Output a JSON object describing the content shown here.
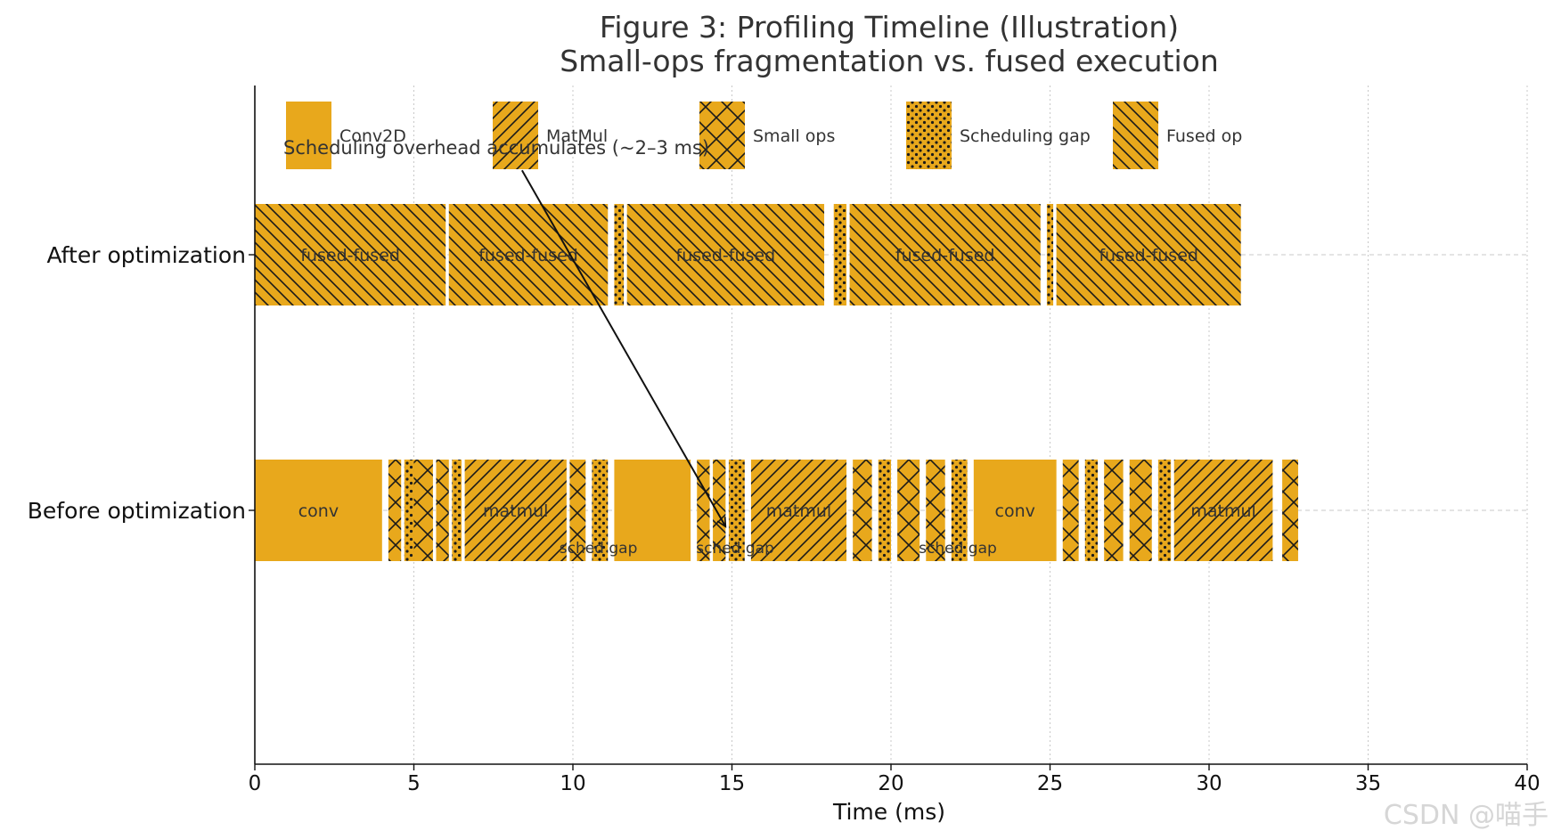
{
  "chart_data": {
    "type": "timeline",
    "title": "Figure 3: Profiling Timeline (Illustration)",
    "subtitle": "Small-ops fragmentation vs. fused execution",
    "xlabel": "Time (ms)",
    "ylabel": "",
    "xlim": [
      0,
      40
    ],
    "xticks": [
      "0",
      "5",
      "10",
      "15",
      "20",
      "25",
      "30",
      "35",
      "40"
    ],
    "grid": "x dotted",
    "bar_color": "#E8A81C",
    "edge_color": "#1a1a1a",
    "rows": [
      "After optimization",
      "Before optimization"
    ],
    "legend": [
      {
        "label": "Conv2D",
        "pattern": "solid"
      },
      {
        "label": "MatMul",
        "pattern": "forward-hatch"
      },
      {
        "label": "Small ops",
        "pattern": "cross-hatch"
      },
      {
        "label": "Scheduling gap",
        "pattern": "dots"
      },
      {
        "label": "Fused op",
        "pattern": "back-hatch"
      }
    ],
    "annotation": {
      "text": "Scheduling overhead accumulates (~2–3 ms)",
      "arrow_from": [
        8.4,
        3.5
      ],
      "arrow_to": [
        14.8,
        1.4
      ]
    },
    "series": [
      {
        "row": "After optimization",
        "segments": [
          {
            "start": 0.0,
            "end": 6.0,
            "kind": "fused",
            "label": "fused-fused"
          },
          {
            "start": 6.1,
            "end": 11.1,
            "kind": "fused",
            "label": "fused-fused"
          },
          {
            "start": 11.3,
            "end": 11.6,
            "kind": "gap",
            "label": ""
          },
          {
            "start": 11.7,
            "end": 17.9,
            "kind": "fused",
            "label": "fused-fused"
          },
          {
            "start": 18.2,
            "end": 18.6,
            "kind": "gap",
            "label": ""
          },
          {
            "start": 18.7,
            "end": 24.7,
            "kind": "fused",
            "label": "fused-fused"
          },
          {
            "start": 24.9,
            "end": 25.1,
            "kind": "gap",
            "label": ""
          },
          {
            "start": 25.2,
            "end": 31.0,
            "kind": "fused",
            "label": "fused-fused"
          }
        ]
      },
      {
        "row": "Before optimization",
        "segments": [
          {
            "start": 0.0,
            "end": 4.0,
            "kind": "conv",
            "label": "conv"
          },
          {
            "start": 4.2,
            "end": 4.6,
            "kind": "small",
            "label": ""
          },
          {
            "start": 4.7,
            "end": 5.0,
            "kind": "gap",
            "label": ""
          },
          {
            "start": 5.0,
            "end": 5.6,
            "kind": "small",
            "label": ""
          },
          {
            "start": 5.7,
            "end": 6.1,
            "kind": "small",
            "label": ""
          },
          {
            "start": 6.2,
            "end": 6.5,
            "kind": "gap",
            "label": ""
          },
          {
            "start": 6.6,
            "end": 9.8,
            "kind": "matmul",
            "label": "matmul"
          },
          {
            "start": 9.9,
            "end": 10.4,
            "kind": "small",
            "label": ""
          },
          {
            "start": 10.6,
            "end": 11.1,
            "kind": "gap",
            "label": ""
          },
          {
            "start": 11.3,
            "end": 13.7,
            "kind": "conv",
            "label": ""
          },
          {
            "start": 13.9,
            "end": 14.3,
            "kind": "small",
            "label": ""
          },
          {
            "start": 14.4,
            "end": 14.8,
            "kind": "small",
            "label": ""
          },
          {
            "start": 14.9,
            "end": 15.4,
            "kind": "gap",
            "label": ""
          },
          {
            "start": 15.6,
            "end": 18.6,
            "kind": "matmul",
            "label": "matmul"
          },
          {
            "start": 18.8,
            "end": 19.4,
            "kind": "small",
            "label": ""
          },
          {
            "start": 19.6,
            "end": 20.0,
            "kind": "gap",
            "label": ""
          },
          {
            "start": 20.2,
            "end": 20.9,
            "kind": "small",
            "label": ""
          },
          {
            "start": 21.1,
            "end": 21.7,
            "kind": "small",
            "label": ""
          },
          {
            "start": 21.9,
            "end": 22.4,
            "kind": "gap",
            "label": ""
          },
          {
            "start": 22.6,
            "end": 25.2,
            "kind": "conv",
            "label": "conv"
          },
          {
            "start": 25.4,
            "end": 25.9,
            "kind": "small",
            "label": ""
          },
          {
            "start": 26.1,
            "end": 26.5,
            "kind": "gap",
            "label": ""
          },
          {
            "start": 26.7,
            "end": 27.3,
            "kind": "small",
            "label": ""
          },
          {
            "start": 27.5,
            "end": 28.2,
            "kind": "small",
            "label": ""
          },
          {
            "start": 28.4,
            "end": 28.8,
            "kind": "gap",
            "label": ""
          },
          {
            "start": 28.9,
            "end": 32.0,
            "kind": "matmul",
            "label": "matmul"
          },
          {
            "start": 32.3,
            "end": 32.8,
            "kind": "small",
            "label": ""
          }
        ],
        "sub_labels": [
          {
            "x": 10.8,
            "text": "sched gap"
          },
          {
            "x": 15.1,
            "text": "sched gap"
          },
          {
            "x": 22.1,
            "text": "sched gap"
          }
        ]
      }
    ]
  },
  "watermark": "CSDN @喵手"
}
